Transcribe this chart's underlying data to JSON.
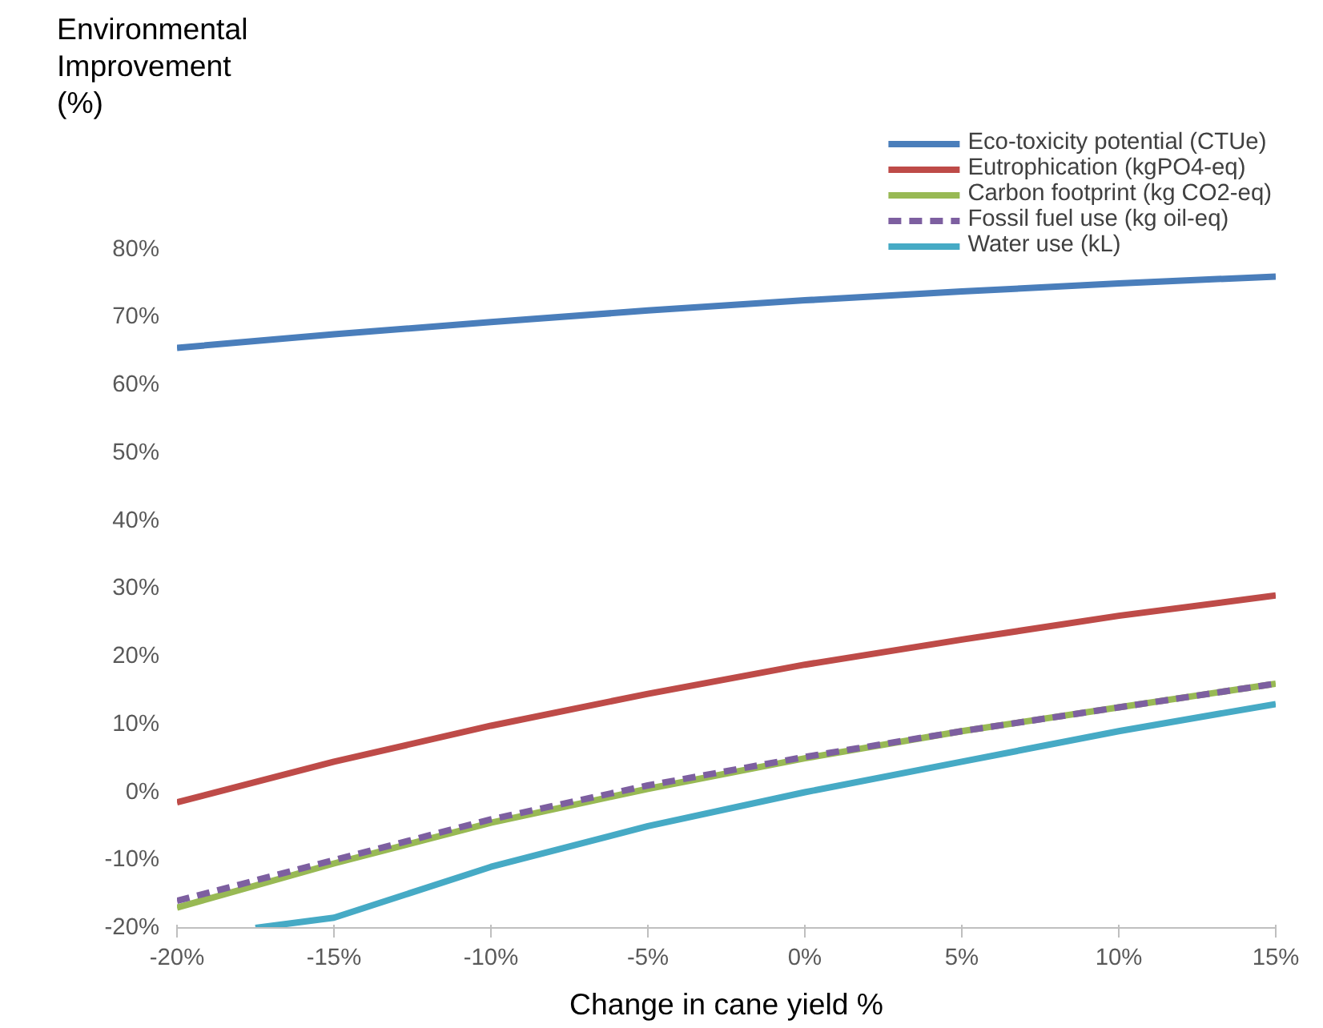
{
  "chart_data": {
    "type": "line",
    "xlabel": "Change in cane yield %",
    "ylabel": "Environmental Improvement (%)",
    "x": [
      -20,
      -15,
      -10,
      -5,
      0,
      5,
      10,
      15
    ],
    "series": [
      {
        "name": "Eco-toxicity potential (CTUe)",
        "color": "#4a7ebb",
        "values": [
          65.5,
          67.5,
          69.3,
          71,
          72.5,
          73.8,
          75,
          76
        ]
      },
      {
        "name": "Eutrophication (kgPO4-eq)",
        "color": "#be4b48",
        "values": [
          -1.5,
          4.5,
          9.8,
          14.5,
          18.8,
          22.5,
          26,
          29
        ]
      },
      {
        "name": "Carbon footprint (kg CO2-eq)",
        "color": "#98b954",
        "values": [
          -17,
          -10.5,
          -4.5,
          0.5,
          5,
          9,
          12.5,
          16
        ]
      },
      {
        "name": "Fossil fuel use (kg oil-eq)",
        "color": "#7d5fa0",
        "line_style": "dashed",
        "values": [
          -16,
          -10,
          -4,
          1,
          5.2,
          9,
          12.5,
          16
        ]
      },
      {
        "name": "Water use (kL)",
        "color": "#46aac5",
        "x": [
          -17.5,
          -15,
          -10,
          -5,
          0,
          5,
          10,
          15
        ],
        "values": [
          -20,
          -18.5,
          -11,
          -5,
          0,
          4.5,
          9,
          13
        ]
      }
    ],
    "xlim": [
      -20,
      15
    ],
    "ylim": [
      -20,
      80
    ],
    "xticks": [
      {
        "value": -20,
        "label": "-20%"
      },
      {
        "value": -15,
        "label": "-15%"
      },
      {
        "value": -10,
        "label": "-10%"
      },
      {
        "value": -5,
        "label": "-5%"
      },
      {
        "value": 0,
        "label": "0%"
      },
      {
        "value": 5,
        "label": "5%"
      },
      {
        "value": 10,
        "label": "10%"
      },
      {
        "value": 15,
        "label": "15%"
      }
    ],
    "yticks": [
      {
        "value": -20,
        "label": "-20%"
      },
      {
        "value": -10,
        "label": "-10%"
      },
      {
        "value": 0,
        "label": "0%"
      },
      {
        "value": 10,
        "label": "10%"
      },
      {
        "value": 20,
        "label": "20%"
      },
      {
        "value": 30,
        "label": "30%"
      },
      {
        "value": 40,
        "label": "40%"
      },
      {
        "value": 50,
        "label": "50%"
      },
      {
        "value": 60,
        "label": "60%"
      },
      {
        "value": 70,
        "label": "70%"
      },
      {
        "value": 80,
        "label": "80%"
      }
    ],
    "grid": false,
    "legend": "top right",
    "marker": "none",
    "line_style": "solid"
  }
}
